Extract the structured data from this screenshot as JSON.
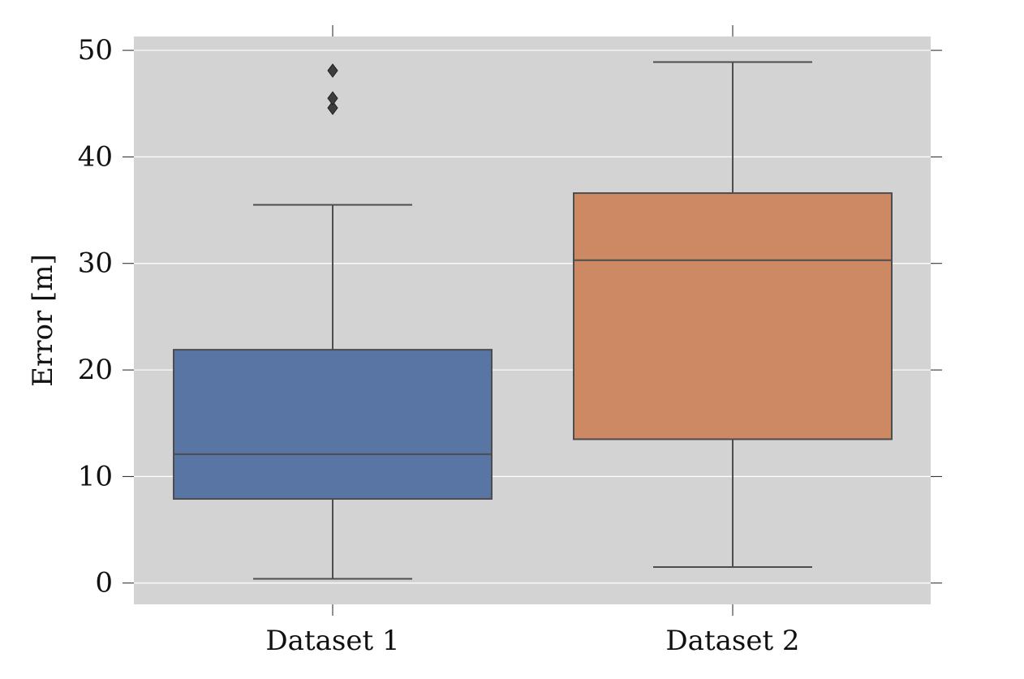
{
  "chart_data": {
    "type": "box",
    "title": "",
    "xlabel": "",
    "ylabel": "Error [m]",
    "ylim": [
      -2,
      51.3
    ],
    "yticks": [
      0,
      10,
      20,
      30,
      40,
      50
    ],
    "ytick_labels": [
      "0",
      "10",
      "20",
      "30",
      "40",
      "50"
    ],
    "grid": true,
    "grid_axis": "y",
    "background_color": "#d3d3d3",
    "categories": [
      "Dataset 1",
      "Dataset 2"
    ],
    "series": [
      {
        "category": "Dataset 1",
        "color": "#5875a4",
        "whisker_low": 0.4,
        "q1": 7.9,
        "median": 12.1,
        "q3": 21.9,
        "whisker_high": 35.5,
        "outliers": [
          44.6,
          45.5,
          48.1
        ]
      },
      {
        "category": "Dataset 2",
        "color": "#cc8963",
        "whisker_low": 1.5,
        "q1": 13.5,
        "median": 30.3,
        "q3": 36.6,
        "whisker_high": 48.9,
        "outliers": []
      }
    ]
  }
}
